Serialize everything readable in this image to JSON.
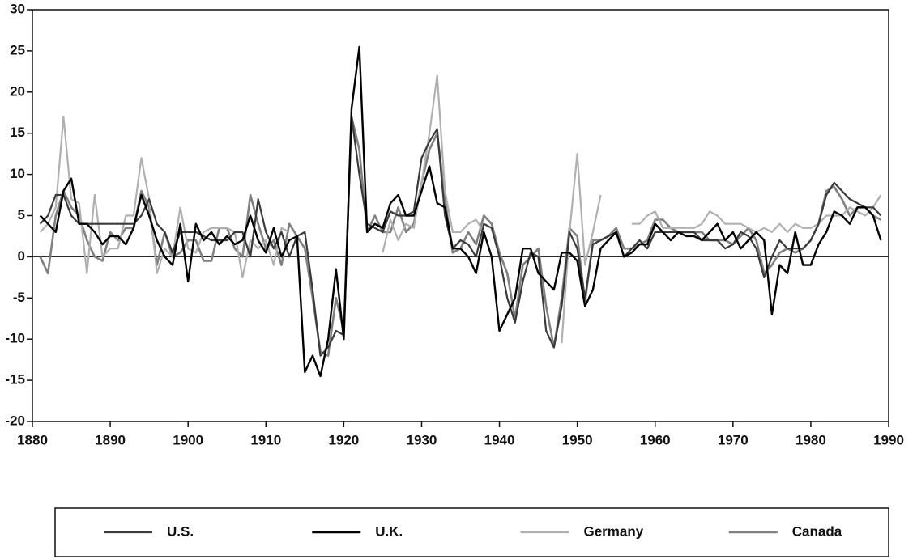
{
  "chart_data": {
    "type": "line",
    "x": [
      1881,
      1882,
      1883,
      1884,
      1885,
      1886,
      1887,
      1888,
      1889,
      1890,
      1891,
      1892,
      1893,
      1894,
      1895,
      1896,
      1897,
      1898,
      1899,
      1900,
      1901,
      1902,
      1903,
      1904,
      1905,
      1906,
      1907,
      1908,
      1909,
      1910,
      1911,
      1912,
      1913,
      1914,
      1915,
      1916,
      1917,
      1918,
      1919,
      1920,
      1921,
      1922,
      1923,
      1924,
      1925,
      1926,
      1927,
      1928,
      1929,
      1930,
      1931,
      1932,
      1933,
      1934,
      1935,
      1936,
      1937,
      1938,
      1939,
      1940,
      1941,
      1942,
      1943,
      1944,
      1945,
      1946,
      1947,
      1948,
      1949,
      1950,
      1951,
      1952,
      1953,
      1954,
      1955,
      1956,
      1957,
      1958,
      1959,
      1960,
      1961,
      1962,
      1963,
      1964,
      1965,
      1966,
      1967,
      1968,
      1969,
      1970,
      1971,
      1972,
      1973,
      1974,
      1975,
      1976,
      1977,
      1978,
      1979,
      1980,
      1981,
      1982,
      1983,
      1984,
      1985,
      1986,
      1987,
      1988,
      1989
    ],
    "series": [
      {
        "name": "U.S.",
        "color": "#3a3a3a",
        "width": 2.2,
        "values": [
          4,
          5,
          7.5,
          7.5,
          5,
          4,
          4,
          4,
          4,
          4,
          4,
          4,
          4,
          5,
          7,
          4,
          3,
          0.5,
          3,
          3,
          3,
          2.5,
          2,
          2,
          2,
          3,
          3,
          0,
          7,
          3,
          1,
          3,
          0,
          2.5,
          3,
          -4,
          -12,
          -11,
          -9,
          -9.5,
          17,
          10,
          4,
          3.5,
          3,
          5.5,
          5,
          5,
          5.5,
          12,
          14,
          15.5,
          5,
          1,
          2,
          1.5,
          0,
          4,
          3.5,
          0,
          -5,
          -8,
          -3,
          0.5,
          0,
          -9,
          -11,
          -6,
          3,
          1,
          -5,
          1.5,
          2,
          2.5,
          3,
          0,
          1,
          2,
          1,
          3,
          3,
          3,
          3,
          3,
          3,
          2,
          2,
          2,
          1,
          1.5,
          3,
          2.5,
          1,
          -2.5,
          0,
          2,
          1,
          1,
          1,
          2,
          4,
          7.5,
          9,
          8,
          7,
          6.5,
          6,
          6,
          5
        ]
      },
      {
        "name": "U.K.",
        "color": "#000000",
        "width": 2.4,
        "values": [
          5,
          4,
          3,
          8,
          9.5,
          4,
          4,
          3,
          1.5,
          2.5,
          2.5,
          1.5,
          3.5,
          7.5,
          5,
          2,
          0,
          -1,
          4,
          -3,
          4,
          2,
          3,
          1.5,
          2.5,
          1.5,
          2,
          5,
          2,
          0.5,
          3.5,
          0,
          2,
          2.5,
          -14,
          -12,
          -14.5,
          -10,
          -1.5,
          -10,
          18,
          25.5,
          3,
          4,
          3.5,
          6.5,
          7.5,
          5,
          5,
          8,
          11,
          6.5,
          6,
          1,
          1,
          0,
          -2,
          3,
          0,
          -9,
          -7,
          -5,
          1,
          1,
          -2,
          -3,
          -4,
          0.5,
          0.5,
          -0.5,
          -6,
          -4,
          1,
          2,
          3,
          0,
          0.5,
          1.5,
          1.5,
          4,
          3,
          2,
          3,
          2.5,
          2.5,
          2,
          3,
          4,
          2,
          3,
          1,
          2,
          3,
          2,
          -7,
          -1,
          -2,
          3,
          -1,
          -1,
          1.5,
          3,
          5.5,
          5,
          4,
          6,
          6,
          5,
          2
        ]
      },
      {
        "name": "Germany",
        "color": "#b0b0b0",
        "width": 2.2,
        "values": [
          3,
          4,
          6,
          17,
          7,
          6.5,
          -2,
          7.5,
          0,
          1,
          1,
          5,
          5,
          12,
          7,
          -2,
          1,
          0,
          6,
          1,
          0.5,
          3,
          3.5,
          3.5,
          3.5,
          3,
          -2.5,
          2,
          1,
          2,
          -1,
          3.5,
          3,
          null,
          null,
          null,
          null,
          null,
          null,
          null,
          null,
          null,
          null,
          null,
          0.5,
          4.5,
          2,
          4,
          3.5,
          9,
          15,
          22,
          8,
          3,
          3,
          4,
          4.5,
          3,
          null,
          null,
          null,
          null,
          null,
          null,
          null,
          null,
          null,
          -10.5,
          3,
          12.5,
          -1,
          3,
          7.5,
          null,
          null,
          null,
          4,
          4,
          5,
          5.5,
          3.5,
          3.5,
          3.5,
          3.5,
          3.5,
          4,
          5.5,
          5,
          4,
          4,
          4,
          3.5,
          3,
          3.5,
          3,
          4,
          3,
          4,
          3.5,
          3.5,
          4,
          5,
          5,
          5,
          6,
          5.5,
          5,
          6,
          7.5
        ]
      },
      {
        "name": "Canada",
        "color": "#808080",
        "width": 2.6,
        "values": [
          0,
          -2,
          5,
          8,
          6,
          5,
          2,
          0,
          -0.5,
          3,
          2,
          3.5,
          3.5,
          8,
          6,
          -1,
          3,
          0,
          0.5,
          2,
          2,
          -0.5,
          -0.5,
          3.5,
          3.5,
          1,
          0,
          7.5,
          4,
          1,
          2,
          -1,
          4,
          2.5,
          1,
          -5,
          -11.5,
          -12,
          -5,
          -9,
          17,
          13,
          3,
          5,
          3,
          3,
          6,
          3,
          4,
          9,
          13,
          15,
          7,
          0.5,
          1,
          3,
          1.5,
          5,
          4,
          0.5,
          -2,
          -7.5,
          -1,
          0,
          1,
          -6,
          -11,
          -5,
          3.5,
          2.5,
          -5.5,
          2,
          2,
          2.5,
          3.5,
          1,
          1,
          1.5,
          2,
          4.5,
          4.5,
          3.5,
          3,
          3,
          3,
          3,
          2,
          2,
          2,
          1.5,
          2.5,
          3.5,
          2,
          -2,
          -1,
          0.5,
          1,
          0.5,
          1,
          2,
          4,
          8,
          8.5,
          7,
          5,
          6,
          6,
          5,
          4.5
        ]
      }
    ],
    "xlim": [
      1880,
      1990
    ],
    "xticks": [
      1880,
      1890,
      1900,
      1910,
      1920,
      1930,
      1940,
      1950,
      1960,
      1970,
      1980,
      1990
    ],
    "ylim": [
      -20,
      30
    ],
    "yticks": [
      -20,
      -15,
      -10,
      -5,
      0,
      5,
      10,
      15,
      20,
      25,
      30
    ],
    "zero_line": true,
    "legend": "bottom"
  }
}
